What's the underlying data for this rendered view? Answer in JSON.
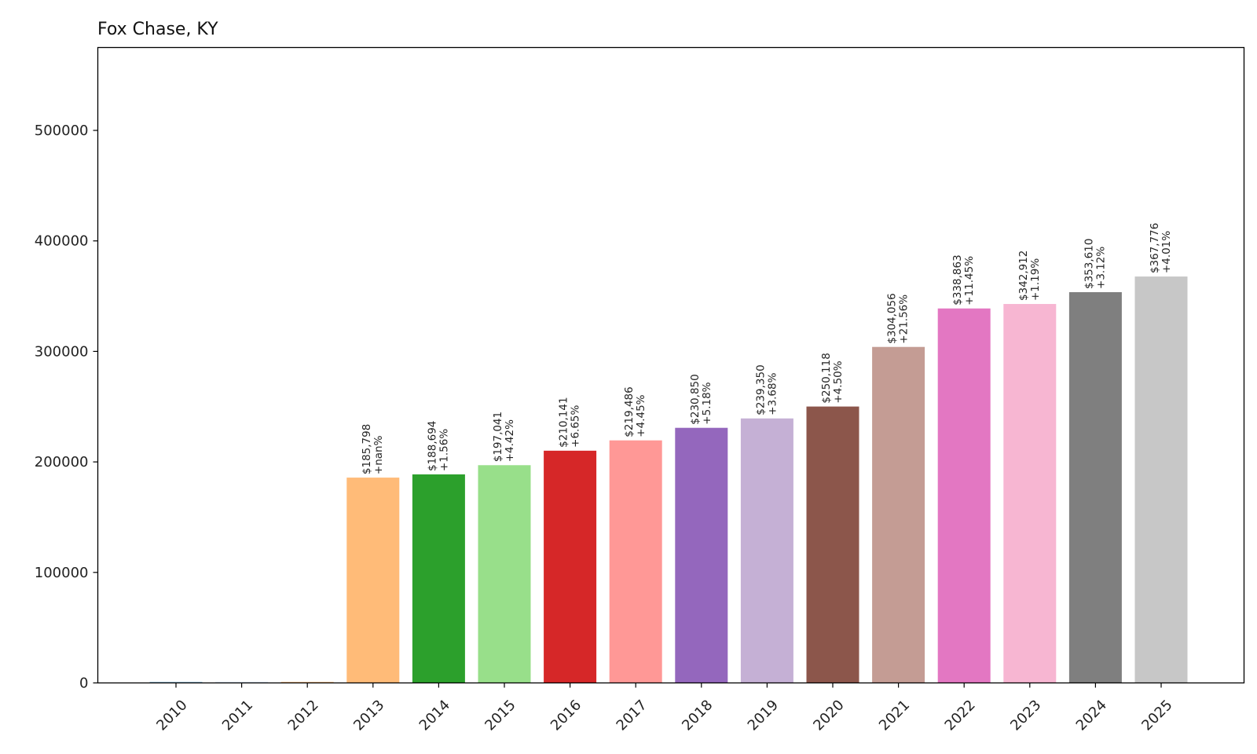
{
  "chart_data": {
    "type": "bar",
    "title": "Fox Chase, KY",
    "xlabel": "",
    "ylabel": "",
    "ylim": [
      0,
      575000
    ],
    "yticks": [
      0,
      100000,
      200000,
      300000,
      400000,
      500000
    ],
    "ytick_labels": [
      "0",
      "100000",
      "200000",
      "300000",
      "400000",
      "500000"
    ],
    "categories": [
      "2010",
      "2011",
      "2012",
      "2013",
      "2014",
      "2015",
      "2016",
      "2017",
      "2018",
      "2019",
      "2020",
      "2021",
      "2022",
      "2023",
      "2024",
      "2025"
    ],
    "values": [
      0,
      0,
      0,
      185798,
      188694,
      197041,
      210141,
      219486,
      230850,
      239350,
      250118,
      304056,
      338863,
      342912,
      353610,
      367776
    ],
    "value_labels": [
      "",
      "",
      "",
      "$185,798",
      "$188,694",
      "$197,041",
      "$210,141",
      "$219,486",
      "$230,850",
      "$239,350",
      "$250,118",
      "$304,056",
      "$338,863",
      "$342,912",
      "$353,610",
      "$367,776"
    ],
    "change_labels": [
      "",
      "",
      "",
      "+nan%",
      "+1.56%",
      "+4.42%",
      "+6.65%",
      "+4.45%",
      "+5.18%",
      "+3.68%",
      "+4.50%",
      "+21.56%",
      "+11.45%",
      "+1.19%",
      "+3.12%",
      "+4.01%"
    ],
    "colors": [
      "#1f77b4",
      "#aec7e8",
      "#ff7f0e",
      "#ffbb78",
      "#2ca02c",
      "#98df8a",
      "#d62728",
      "#ff9896",
      "#9467bd",
      "#c5b0d5",
      "#8c564b",
      "#c49c94",
      "#e377c2",
      "#f7b6d2",
      "#7f7f7f",
      "#c7c7c7"
    ],
    "grid": false,
    "legend": "none"
  }
}
